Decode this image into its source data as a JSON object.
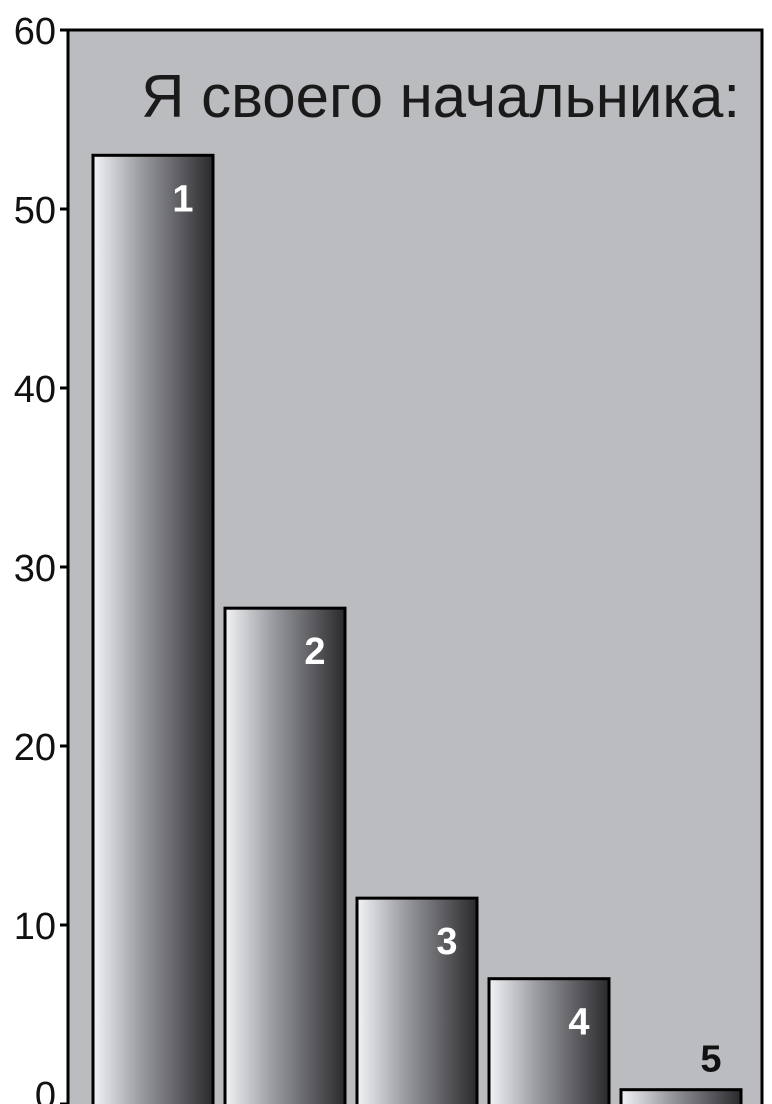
{
  "chart_data": {
    "type": "bar",
    "title": "Я своего начальника:",
    "xlabel": "",
    "ylabel": "",
    "ylim": [
      0,
      60
    ],
    "yticks": [
      "0",
      "10",
      "20",
      "30",
      "40",
      "50",
      "60"
    ],
    "categories": [
      "1",
      "2",
      "3",
      "4",
      "5"
    ],
    "values": [
      53,
      27.7,
      11.5,
      7,
      0.8
    ],
    "grid": false,
    "legend": "none",
    "colors": {
      "plot_background": "#bbbcc0",
      "bar_light": "#f2f3f6",
      "bar_dark": "#2a2a2d",
      "bar_outline": "#000000",
      "label_on_bar": "#ffffff",
      "label_above_bar": "#111111"
    }
  }
}
